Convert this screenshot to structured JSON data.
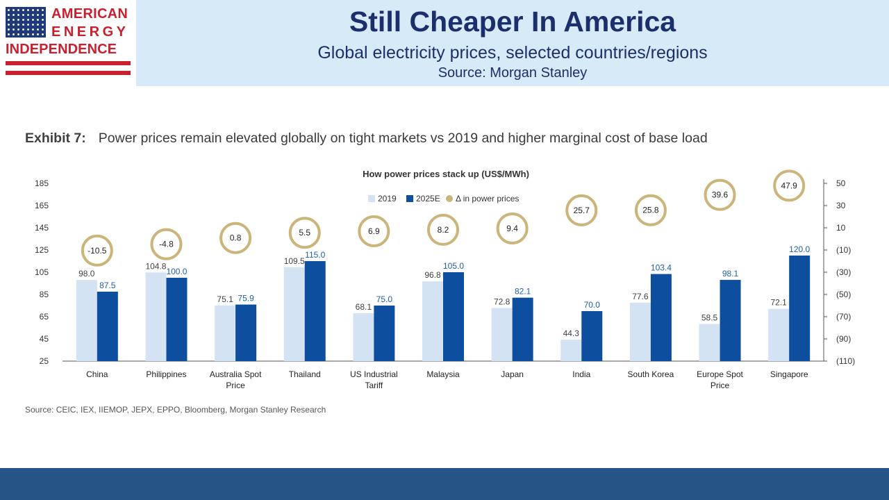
{
  "logo": {
    "line1": "AMERICAN",
    "line2": "ENERGY",
    "line3": "INDEPENDENCE"
  },
  "header": {
    "title": "Still Cheaper In America",
    "subtitle": "Global electricity prices, selected countries/regions",
    "source": "Source: Morgan Stanley"
  },
  "exhibit": {
    "label": "Exhibit 7:",
    "text": "Power prices remain elevated globally on tight markets vs 2019 and higher marginal cost of base load"
  },
  "footer": {
    "source": "Source: CEIC, IEX, IIEMOP, JEPX, EPPO, Bloomberg, Morgan Stanley Research"
  },
  "chart_data": {
    "type": "bar",
    "title": "How power prices stack up (US$/MWh)",
    "categories": [
      [
        "China"
      ],
      [
        "Philippines"
      ],
      [
        "Australia Spot",
        "Price"
      ],
      [
        "Thailand"
      ],
      [
        "US Industrial",
        "Tariff"
      ],
      [
        "Malaysia"
      ],
      [
        "Japan"
      ],
      [
        "India"
      ],
      [
        "South Korea"
      ],
      [
        "Europe Spot",
        "Price"
      ],
      [
        "Singapore"
      ]
    ],
    "series": [
      {
        "name": "2019",
        "color": "#d4e3f3",
        "label_color": "#404040",
        "values": [
          98.0,
          104.8,
          75.1,
          109.5,
          68.1,
          96.8,
          72.8,
          44.3,
          77.6,
          58.5,
          72.1
        ]
      },
      {
        "name": "2025E",
        "color": "#0d4f9e",
        "label_color": "#1f5fa8",
        "values": [
          87.5,
          100.0,
          75.9,
          115.0,
          75.0,
          105.0,
          82.1,
          70.0,
          103.4,
          98.1,
          120.0
        ]
      },
      {
        "name": "Δ in power prices",
        "color": "#cbb57b",
        "axis": "right",
        "values": [
          -10.5,
          -4.8,
          0.8,
          5.5,
          6.9,
          8.2,
          9.4,
          25.7,
          25.8,
          39.6,
          47.9
        ]
      }
    ],
    "left_axis": {
      "ylim": [
        25,
        195
      ],
      "ticks": [
        "25",
        "45",
        "65",
        "85",
        "105",
        "125",
        "145",
        "165",
        "185"
      ]
    },
    "right_axis": {
      "ylim": [
        -110,
        60
      ],
      "ticks": [
        "(110)",
        "(90)",
        "(70)",
        "(50)",
        "(30)",
        "(10)",
        "10",
        "30",
        "50"
      ]
    },
    "legend_position": "top-center",
    "grid": false
  }
}
